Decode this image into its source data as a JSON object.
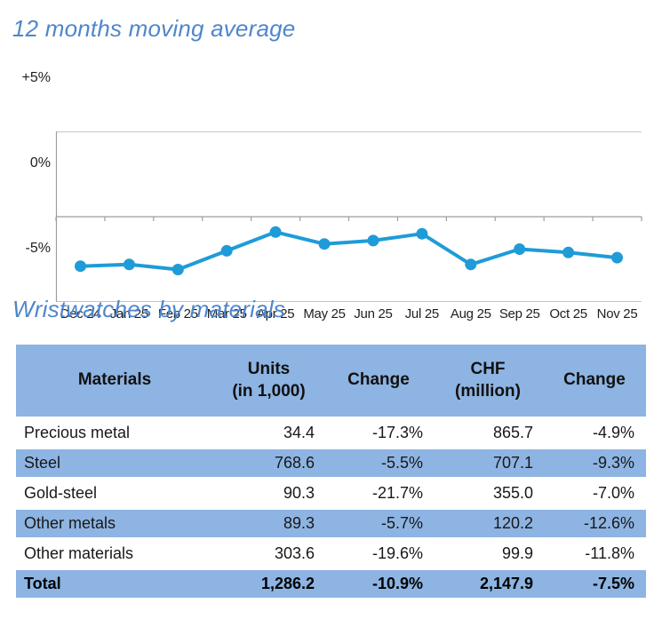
{
  "colors": {
    "accent_blue": "#8db4e2",
    "title_blue": "#4f86cb",
    "line_blue": "#1f9bd8",
    "grid_gray": "#c6c6c6",
    "axis_gray": "#9e9e9e"
  },
  "chart_section": {
    "title": "12 months moving average"
  },
  "chart_data": {
    "type": "line",
    "title": "12 months moving average",
    "x": [
      "Dec 24",
      "Jan 25",
      "Feb 25",
      "Mar 25",
      "Apr 25",
      "May 25",
      "Jun 25",
      "Jul 25",
      "Aug 25",
      "Sep 25",
      "Oct 25",
      "Nov 25"
    ],
    "values": [
      -2.9,
      -2.8,
      -3.1,
      -2.0,
      -0.9,
      -1.6,
      -1.4,
      -1.0,
      -2.8,
      -1.9,
      -2.1,
      -2.4
    ],
    "unit": "%",
    "ylim": [
      -5,
      5
    ],
    "y_ticks": [
      {
        "label": "+5%",
        "value": 5
      },
      {
        "label": "0%",
        "value": 0
      },
      {
        "label": "-5%",
        "value": -5
      }
    ],
    "grid": "horizontal gridlines at +5%, 0%, -5%; category ticks below 0% axis",
    "legend": "none",
    "line_color": "#1f9bd8",
    "marker": "filled-circle"
  },
  "table_section": {
    "title": "Wristwatches by materials",
    "columns": [
      {
        "label": "Materials",
        "sub": ""
      },
      {
        "label": "Units",
        "sub": "(in 1,000)"
      },
      {
        "label": "Change",
        "sub": ""
      },
      {
        "label": "CHF",
        "sub": "(million)"
      },
      {
        "label": "Change",
        "sub": ""
      }
    ],
    "rows": [
      {
        "material": "Precious metal",
        "units": "34.4",
        "units_change": "-17.3%",
        "chf": "865.7",
        "chf_change": "-4.9%"
      },
      {
        "material": "Steel",
        "units": "768.6",
        "units_change": "-5.5%",
        "chf": "707.1",
        "chf_change": "-9.3%"
      },
      {
        "material": "Gold-steel",
        "units": "90.3",
        "units_change": "-21.7%",
        "chf": "355.0",
        "chf_change": "-7.0%"
      },
      {
        "material": "Other metals",
        "units": "89.3",
        "units_change": "-5.7%",
        "chf": "120.2",
        "chf_change": "-12.6%"
      },
      {
        "material": "Other materials",
        "units": "303.6",
        "units_change": "-19.6%",
        "chf": "99.9",
        "chf_change": "-11.8%"
      }
    ],
    "total": {
      "material": "Total",
      "units": "1,286.2",
      "units_change": "-10.9%",
      "chf": "2,147.9",
      "chf_change": "-7.5%"
    }
  }
}
